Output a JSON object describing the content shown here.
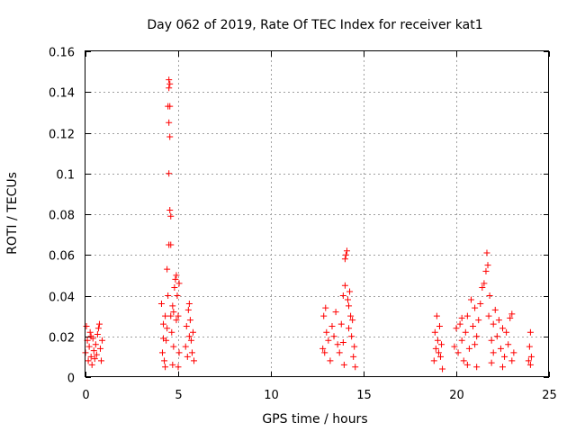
{
  "chart_data": {
    "type": "scatter",
    "title": "Day 062 of 2019, Rate Of TEC Index for receiver kat1",
    "xlabel": "GPS time / hours",
    "ylabel": "ROTI / TECUs",
    "xlim": [
      0,
      25
    ],
    "ylim": [
      0,
      0.16
    ],
    "xticks": [
      0,
      5,
      10,
      15,
      20,
      25
    ],
    "xtick_labels": [
      "0",
      "5",
      "10",
      "15",
      "20",
      "25"
    ],
    "yticks": [
      0,
      0.02,
      0.04,
      0.06,
      0.08,
      0.1,
      0.12,
      0.14,
      0.16
    ],
    "ytick_labels": [
      "0",
      "0.02",
      "0.04",
      "0.06",
      "0.08",
      "0.1",
      "0.12",
      "0.14",
      "0.16"
    ],
    "grid": true,
    "marker": "+",
    "color": "#ff0000",
    "series": [
      {
        "name": "ROTI",
        "points": [
          [
            0.0,
            0.012
          ],
          [
            0.05,
            0.025
          ],
          [
            0.1,
            0.018
          ],
          [
            0.15,
            0.008
          ],
          [
            0.2,
            0.015
          ],
          [
            0.25,
            0.022
          ],
          [
            0.3,
            0.01
          ],
          [
            0.35,
            0.006
          ],
          [
            0.4,
            0.019
          ],
          [
            0.45,
            0.013
          ],
          [
            0.5,
            0.009
          ],
          [
            0.55,
            0.016
          ],
          [
            0.6,
            0.011
          ],
          [
            0.65,
            0.021
          ],
          [
            0.7,
            0.024
          ],
          [
            0.75,
            0.026
          ],
          [
            0.8,
            0.014
          ],
          [
            0.85,
            0.008
          ],
          [
            0.9,
            0.018
          ],
          [
            0.3,
            0.02
          ],
          [
            4.1,
            0.036
          ],
          [
            4.15,
            0.012
          ],
          [
            4.2,
            0.026
          ],
          [
            4.25,
            0.008
          ],
          [
            4.3,
            0.03
          ],
          [
            4.35,
            0.018
          ],
          [
            4.4,
            0.053
          ],
          [
            4.45,
            0.04
          ],
          [
            4.5,
            0.065
          ],
          [
            4.55,
            0.082
          ],
          [
            4.5,
            0.1
          ],
          [
            4.55,
            0.118
          ],
          [
            4.5,
            0.125
          ],
          [
            4.55,
            0.133
          ],
          [
            4.45,
            0.133
          ],
          [
            4.5,
            0.142
          ],
          [
            4.55,
            0.144
          ],
          [
            4.5,
            0.146
          ],
          [
            4.6,
            0.079
          ],
          [
            4.6,
            0.065
          ],
          [
            4.6,
            0.03
          ],
          [
            4.65,
            0.022
          ],
          [
            4.7,
            0.035
          ],
          [
            4.75,
            0.015
          ],
          [
            4.8,
            0.044
          ],
          [
            4.85,
            0.048
          ],
          [
            4.9,
            0.05
          ],
          [
            4.95,
            0.04
          ],
          [
            5.0,
            0.03
          ],
          [
            5.05,
            0.012
          ],
          [
            4.3,
            0.005
          ],
          [
            4.7,
            0.006
          ],
          [
            5.0,
            0.005
          ],
          [
            5.05,
            0.046
          ],
          [
            4.9,
            0.028
          ],
          [
            4.2,
            0.019
          ],
          [
            4.4,
            0.024
          ],
          [
            4.75,
            0.032
          ],
          [
            5.4,
            0.015
          ],
          [
            5.45,
            0.025
          ],
          [
            5.5,
            0.01
          ],
          [
            5.55,
            0.033
          ],
          [
            5.6,
            0.02
          ],
          [
            5.65,
            0.028
          ],
          [
            5.7,
            0.018
          ],
          [
            5.75,
            0.012
          ],
          [
            5.8,
            0.022
          ],
          [
            5.85,
            0.008
          ],
          [
            5.6,
            0.036
          ],
          [
            12.8,
            0.014
          ],
          [
            12.85,
            0.03
          ],
          [
            12.9,
            0.012
          ],
          [
            12.95,
            0.034
          ],
          [
            13.0,
            0.022
          ],
          [
            13.1,
            0.018
          ],
          [
            13.2,
            0.008
          ],
          [
            13.3,
            0.025
          ],
          [
            13.4,
            0.02
          ],
          [
            13.5,
            0.032
          ],
          [
            13.6,
            0.016
          ],
          [
            13.7,
            0.012
          ],
          [
            13.8,
            0.026
          ],
          [
            13.9,
            0.04
          ],
          [
            14.0,
            0.045
          ],
          [
            14.05,
            0.06
          ],
          [
            14.1,
            0.062
          ],
          [
            14.0,
            0.058
          ],
          [
            14.15,
            0.038
          ],
          [
            14.2,
            0.035
          ],
          [
            14.25,
            0.042
          ],
          [
            14.3,
            0.03
          ],
          [
            14.35,
            0.02
          ],
          [
            14.4,
            0.028
          ],
          [
            14.45,
            0.01
          ],
          [
            14.5,
            0.015
          ],
          [
            14.55,
            0.005
          ],
          [
            13.95,
            0.006
          ],
          [
            14.2,
            0.024
          ],
          [
            13.9,
            0.017
          ],
          [
            18.8,
            0.008
          ],
          [
            18.85,
            0.022
          ],
          [
            18.9,
            0.014
          ],
          [
            18.95,
            0.03
          ],
          [
            19.0,
            0.018
          ],
          [
            19.05,
            0.012
          ],
          [
            19.1,
            0.025
          ],
          [
            19.15,
            0.01
          ],
          [
            19.2,
            0.016
          ],
          [
            19.25,
            0.004
          ],
          [
            19.9,
            0.015
          ],
          [
            20.0,
            0.024
          ],
          [
            20.1,
            0.012
          ],
          [
            20.2,
            0.026
          ],
          [
            20.3,
            0.018
          ],
          [
            20.4,
            0.008
          ],
          [
            20.5,
            0.022
          ],
          [
            20.6,
            0.03
          ],
          [
            20.7,
            0.014
          ],
          [
            20.8,
            0.038
          ],
          [
            20.9,
            0.025
          ],
          [
            21.0,
            0.034
          ],
          [
            21.1,
            0.02
          ],
          [
            21.2,
            0.028
          ],
          [
            21.3,
            0.036
          ],
          [
            21.4,
            0.044
          ],
          [
            21.5,
            0.046
          ],
          [
            21.6,
            0.052
          ],
          [
            21.65,
            0.061
          ],
          [
            21.7,
            0.055
          ],
          [
            21.75,
            0.03
          ],
          [
            21.8,
            0.04
          ],
          [
            21.9,
            0.018
          ],
          [
            22.0,
            0.026
          ],
          [
            22.1,
            0.033
          ],
          [
            22.2,
            0.02
          ],
          [
            22.3,
            0.028
          ],
          [
            22.4,
            0.014
          ],
          [
            22.5,
            0.024
          ],
          [
            22.6,
            0.01
          ],
          [
            22.7,
            0.022
          ],
          [
            22.8,
            0.016
          ],
          [
            22.9,
            0.029
          ],
          [
            23.0,
            0.031
          ],
          [
            23.1,
            0.012
          ],
          [
            20.6,
            0.006
          ],
          [
            21.1,
            0.005
          ],
          [
            21.9,
            0.007
          ],
          [
            22.5,
            0.005
          ],
          [
            23.0,
            0.008
          ],
          [
            20.3,
            0.029
          ],
          [
            21.0,
            0.016
          ],
          [
            22.0,
            0.012
          ],
          [
            23.9,
            0.008
          ],
          [
            23.95,
            0.015
          ],
          [
            24.0,
            0.022
          ],
          [
            24.05,
            0.01
          ],
          [
            24.0,
            0.006
          ]
        ]
      }
    ]
  }
}
